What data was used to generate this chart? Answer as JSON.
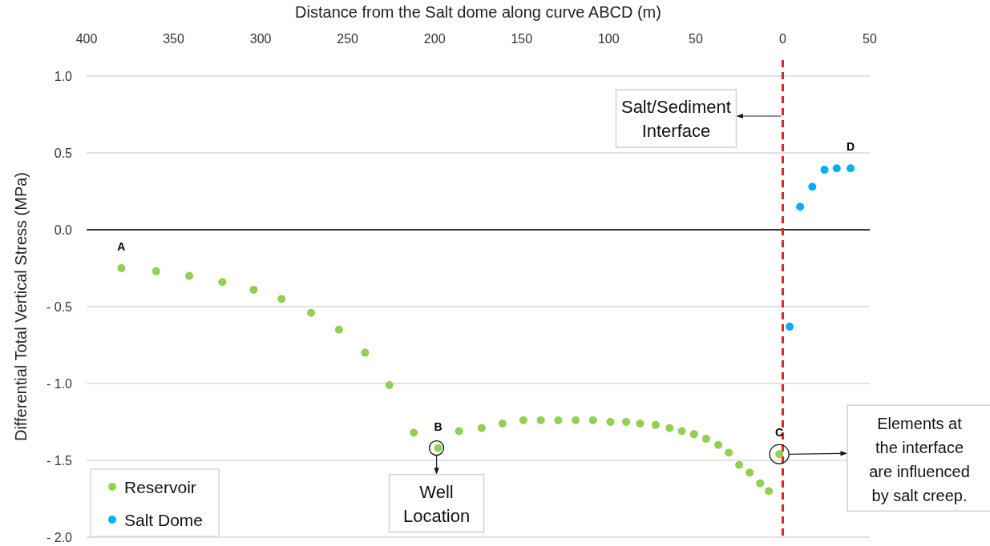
{
  "chart_data": {
    "type": "scatter",
    "xlabel": "Distance from the Salt dome along curve ABCD (m)",
    "ylabel": "Differential Total Vertical Stress (MPa)",
    "xlim": [
      -400,
      50
    ],
    "xticks": [
      {
        "value": -400,
        "label": "400"
      },
      {
        "value": -350,
        "label": "350"
      },
      {
        "value": -300,
        "label": "300"
      },
      {
        "value": -250,
        "label": "250"
      },
      {
        "value": -200,
        "label": "200"
      },
      {
        "value": -150,
        "label": "150"
      },
      {
        "value": -100,
        "label": "100"
      },
      {
        "value": -50,
        "label": "50"
      },
      0,
      50
    ],
    "ylim": [
      -2,
      1
    ],
    "yticks": [
      {
        "value": -2,
        "label": "- 2.0"
      },
      {
        "value": -1.5,
        "label": "- 1.5"
      },
      {
        "value": -1,
        "label": "- 1.0"
      },
      {
        "value": -0.5,
        "label": "- 0.5"
      },
      {
        "value": 0,
        "label": "0.0"
      },
      {
        "value": 0.5,
        "label": "0.5"
      },
      {
        "value": 1,
        "label": "1.0"
      }
    ],
    "grid": "y",
    "legend": "bottom left",
    "marker": "circle",
    "series": [
      {
        "name": "Reservoir",
        "color": "#92d050",
        "x": [
          -380,
          -360,
          -341,
          -322,
          -304,
          -288,
          -271,
          -255,
          -240,
          -226,
          -212,
          -198,
          -186,
          -173,
          -161,
          -149,
          -139,
          -129,
          -119,
          -109,
          -99,
          -90,
          -82,
          -73,
          -65,
          -58,
          -51,
          -44,
          -37,
          -31,
          -25,
          -19,
          -13,
          -8,
          -2
        ],
        "values": [
          -0.25,
          -0.27,
          -0.3,
          -0.34,
          -0.39,
          -0.45,
          -0.54,
          -0.65,
          -0.8,
          -1.01,
          -1.32,
          -1.42,
          -1.31,
          -1.29,
          -1.26,
          -1.24,
          -1.24,
          -1.24,
          -1.24,
          -1.24,
          -1.25,
          -1.25,
          -1.26,
          -1.27,
          -1.29,
          -1.31,
          -1.33,
          -1.36,
          -1.4,
          -1.45,
          -1.53,
          -1.58,
          -1.65,
          -1.7,
          -1.46
        ]
      },
      {
        "name": "Salt Dome",
        "color": "#00b0f0",
        "x": [
          4,
          10,
          17,
          24,
          31,
          39
        ],
        "values": [
          -0.63,
          0.15,
          0.28,
          0.39,
          0.4,
          0.4
        ]
      }
    ],
    "ref_lines": [
      {
        "axis": "x",
        "value": 0,
        "label": "Salt/Sediment Interface",
        "color": "#e02020",
        "line_style": "dashed"
      }
    ],
    "annotations": [
      {
        "text": "A",
        "x": -380,
        "y": -0.25
      },
      {
        "text": "B",
        "x": -198,
        "y": -1.42
      },
      {
        "text": "C",
        "x": -2,
        "y": -1.46
      },
      {
        "text": "D",
        "x": 39,
        "y": 0.4
      },
      {
        "text": "Well Location",
        "x": -198,
        "y": -1.42
      },
      "Elements at the interface are influenced by salt creep."
    ]
  }
}
